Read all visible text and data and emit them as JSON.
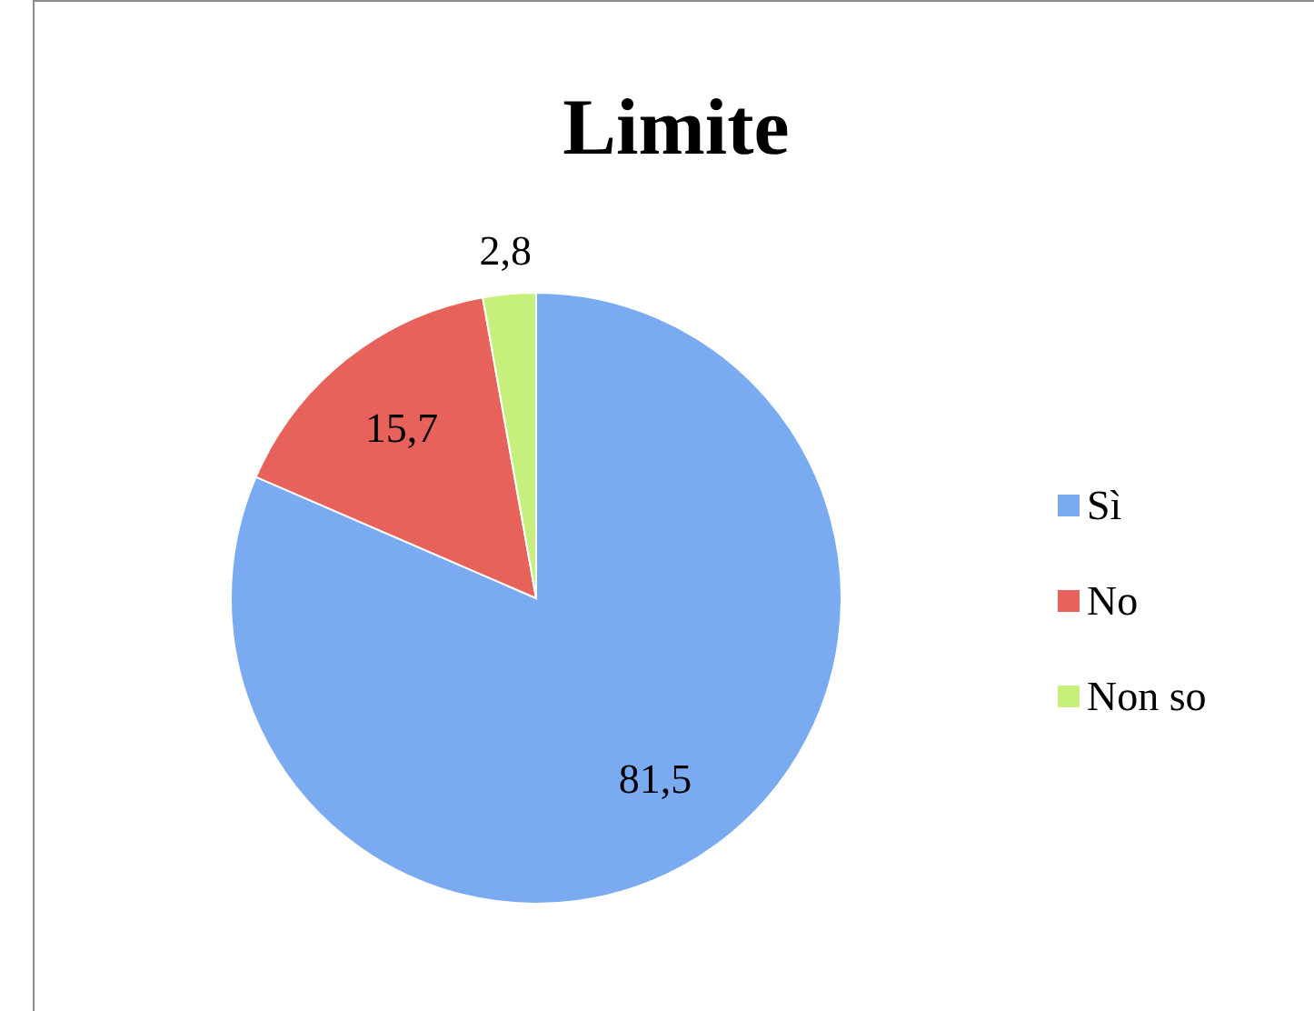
{
  "chart_data": {
    "type": "pie",
    "title": "Limite",
    "categories": [
      "Sì",
      "No",
      "Non so"
    ],
    "values": [
      81.5,
      15.7,
      2.8
    ],
    "value_labels": [
      "81,5",
      "15,7",
      "2,8"
    ],
    "colors": [
      "#7aabf0",
      "#e8625c",
      "#c6ef7c"
    ],
    "legend": "right"
  }
}
